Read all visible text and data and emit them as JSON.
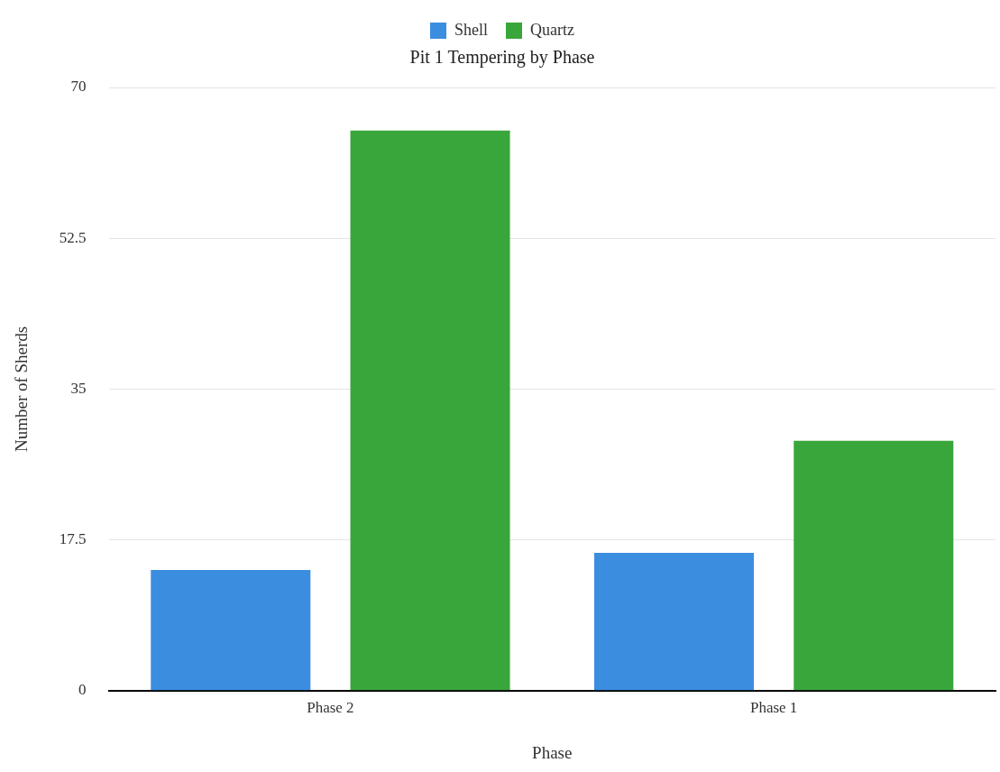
{
  "chart_data": {
    "type": "bar",
    "title": "Pit 1 Tempering by Phase",
    "xlabel": "Phase",
    "ylabel": "Number of Sherds",
    "categories": [
      "Phase 2",
      "Phase 1"
    ],
    "series": [
      {
        "name": "Shell",
        "color": "#3b8de0",
        "values": [
          14,
          16
        ]
      },
      {
        "name": "Quartz",
        "color": "#39a63c",
        "values": [
          65,
          29
        ]
      }
    ],
    "ylim": [
      0,
      70
    ],
    "yticks": [
      0,
      17.5,
      35,
      52.5,
      70
    ],
    "grid": "y",
    "legend": "top"
  }
}
